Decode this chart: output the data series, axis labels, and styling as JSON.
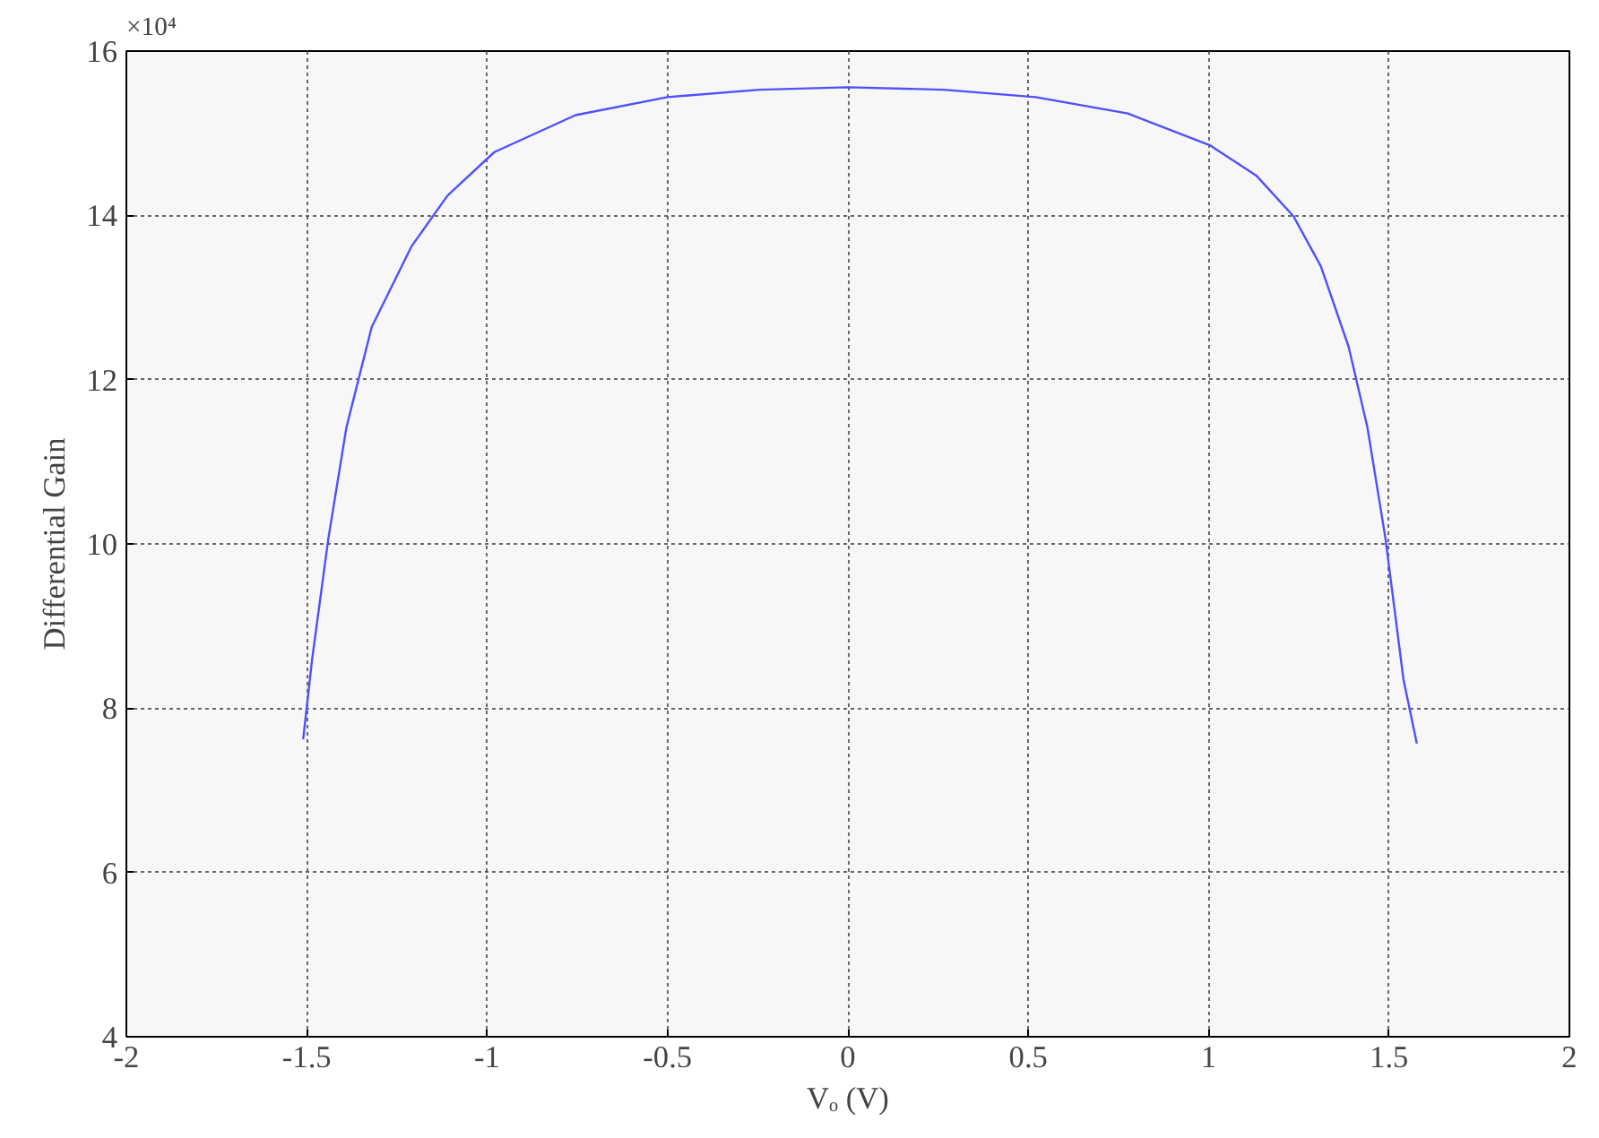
{
  "chart_data": {
    "type": "line",
    "xlabel": "Vₒ (V)",
    "ylabel": "Differential Gain",
    "annotations": [
      "×10⁴"
    ],
    "xlim": [
      -2,
      2
    ],
    "xticks": [
      -2,
      -1.5,
      -1,
      -0.5,
      0,
      0.5,
      1,
      1.5,
      2
    ],
    "ylim": [
      4,
      16
    ],
    "yticks": [
      4,
      6,
      8,
      10,
      12,
      14,
      16
    ],
    "grid": true,
    "marker": "none",
    "line_style": "solid",
    "x": [
      -1.51,
      -1.485,
      -1.44,
      -1.39,
      -1.32,
      -1.21,
      -1.11,
      -0.98,
      -0.755,
      -0.5,
      -0.245,
      0,
      0.265,
      0.52,
      0.776,
      1.005,
      1.133,
      1.235,
      1.311,
      1.388,
      1.44,
      1.49,
      1.54,
      1.577
    ],
    "series": [
      {
        "color": "#4f4fff",
        "values": [
          7.62,
          8.6,
          10.07,
          11.42,
          12.64,
          13.62,
          14.24,
          14.77,
          15.22,
          15.44,
          15.53,
          15.56,
          15.53,
          15.44,
          15.24,
          14.85,
          14.48,
          13.99,
          13.38,
          12.4,
          11.42,
          10.07,
          8.35,
          7.57
        ]
      }
    ]
  }
}
